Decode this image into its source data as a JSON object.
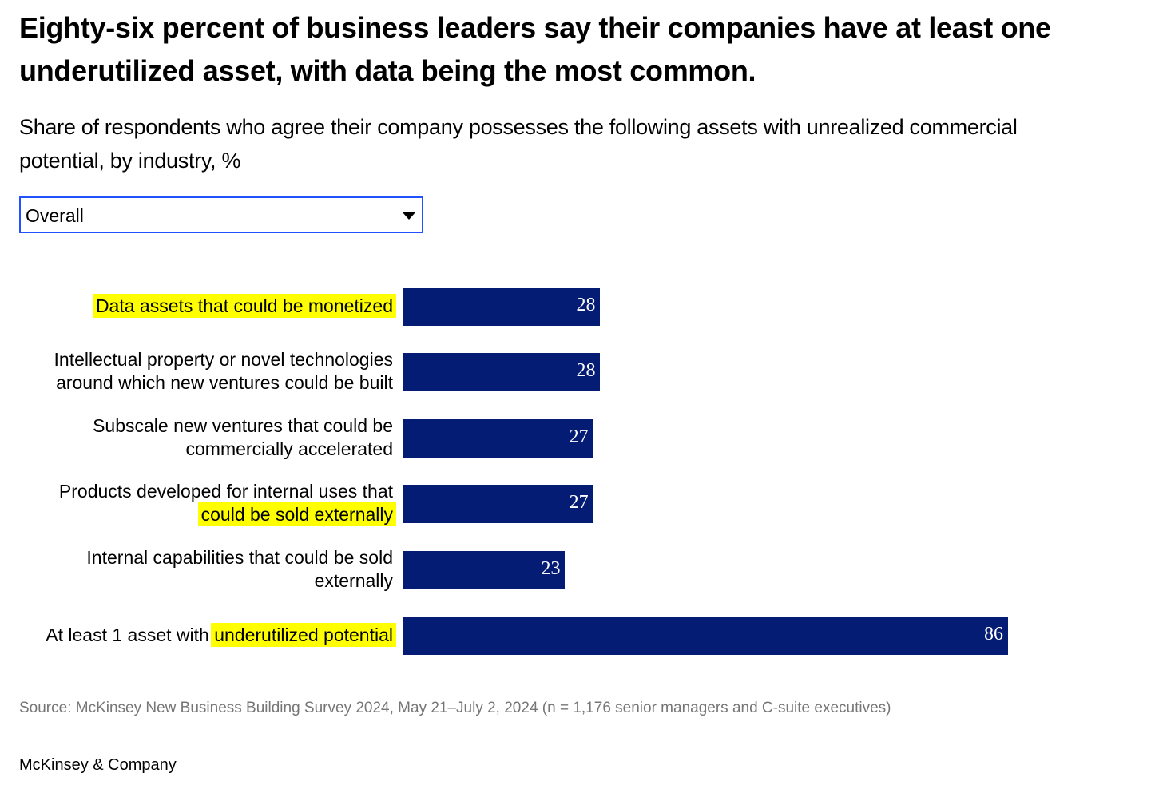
{
  "title": "Eighty-six percent of business leaders say their companies have at least one underutilized asset, with data being the most common.",
  "subtitle": "Share of respondents who agree their company possesses the following assets with unrealized commercial potential, by industry, %",
  "dropdown": {
    "selected": "Overall"
  },
  "chart_data": {
    "type": "bar",
    "orientation": "horizontal",
    "bar_color": "#051c75",
    "highlight_color": "#ffff00",
    "xlim": [
      0,
      86
    ],
    "categories": [
      {
        "lines": [
          [
            {
              "text": "Data assets that could be monetized",
              "highlight": true
            }
          ]
        ]
      },
      {
        "lines": [
          [
            {
              "text": "Intellectual property or novel technologies",
              "highlight": false
            }
          ],
          [
            {
              "text": "around which new ventures could be built",
              "highlight": false
            }
          ]
        ]
      },
      {
        "lines": [
          [
            {
              "text": "Subscale new ventures that could be",
              "highlight": false
            }
          ],
          [
            {
              "text": "commercially accelerated",
              "highlight": false
            }
          ]
        ]
      },
      {
        "lines": [
          [
            {
              "text": "Products developed for internal uses that",
              "highlight": false
            }
          ],
          [
            {
              "text": "could be sold externally",
              "highlight": true
            }
          ]
        ]
      },
      {
        "lines": [
          [
            {
              "text": "Internal capabilities that could be sold",
              "highlight": false
            }
          ],
          [
            {
              "text": "externally",
              "highlight": false
            }
          ]
        ]
      },
      {
        "lines": [
          [
            {
              "text": "At least 1 asset with ",
              "highlight": false
            },
            {
              "text": "underutilized potential",
              "highlight": true
            }
          ]
        ]
      }
    ],
    "values": [
      28,
      28,
      27,
      27,
      23,
      86
    ]
  },
  "source": "Source: McKinsey New Business Building Survey 2024, May 21–July 2, 2024 (n = 1,176 senior managers and C-suite executives)",
  "brand": "McKinsey & Company"
}
